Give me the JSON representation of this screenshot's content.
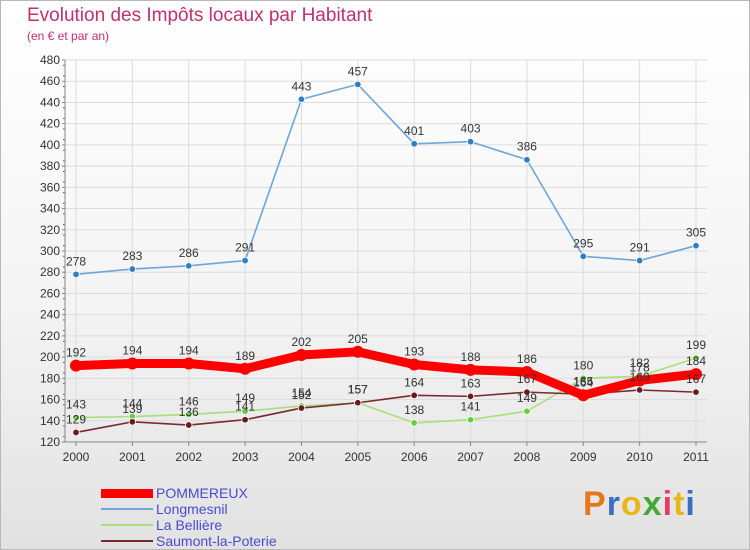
{
  "title": "Evolution des Impôts locaux par Habitant",
  "subtitle": "(en € et par an)",
  "logo": {
    "text": "Proxiti",
    "colors": [
      "#e8761a",
      "#3a6fc0",
      "#e8b81a",
      "#46a83a",
      "#e83a6a",
      "#e8b81a",
      "#3a6fc0"
    ]
  },
  "chart_data": {
    "type": "line",
    "title": "Evolution des Impôts locaux par Habitant",
    "subtitle": "(en € et par an)",
    "xlabel": "",
    "ylabel": "",
    "x": [
      "2000",
      "2001",
      "2002",
      "2003",
      "2004",
      "2005",
      "2006",
      "2007",
      "2008",
      "2009",
      "2010",
      "2011"
    ],
    "ylim": [
      120,
      480
    ],
    "yticks": [
      120,
      140,
      160,
      180,
      200,
      220,
      240,
      260,
      280,
      300,
      320,
      340,
      360,
      380,
      400,
      420,
      440,
      460,
      480
    ],
    "grid": true,
    "legend": "bottom-left",
    "series": [
      {
        "name": "Longmesnil",
        "color": "#6fa6d6",
        "marker_color": "#2f7fc7",
        "values": [
          278,
          283,
          286,
          291,
          443,
          457,
          401,
          403,
          386,
          295,
          291,
          305
        ],
        "labels": [
          "278",
          "283",
          "286",
          "291",
          "443",
          "457",
          "401",
          "403",
          "386",
          "295",
          "291",
          "305"
        ]
      },
      {
        "name": "La Bellière",
        "color": "#a8de7c",
        "marker_color": "#62d040",
        "values": [
          143,
          144,
          146,
          149,
          154,
          157,
          138,
          141,
          149,
          180,
          182,
          199
        ],
        "labels": [
          "143",
          "144",
          "146",
          "149",
          "154",
          "157",
          "138",
          "141",
          "149",
          "180",
          "182",
          "199"
        ]
      },
      {
        "name": "Saumont-la-Poterie",
        "color": "#7a2a32",
        "marker_color": "#6a1a22",
        "values": [
          129,
          139,
          136,
          141,
          152,
          157,
          164,
          163,
          167,
          165,
          169,
          167
        ],
        "labels": [
          "129",
          "139",
          "136",
          "141",
          "152",
          "157",
          "164",
          "163",
          "167",
          "165",
          "169",
          "167"
        ]
      },
      {
        "name": "POMMEREUX",
        "color": "#ff0000",
        "marker_color": "#ff0000",
        "values": [
          192,
          194,
          194,
          189,
          202,
          205,
          193,
          188,
          186,
          164,
          178,
          184
        ],
        "labels": [
          "192",
          "194",
          "194",
          "189",
          "202",
          "205",
          "193",
          "188",
          "186",
          "164",
          "178",
          "184"
        ]
      }
    ],
    "legend_entries": [
      "POMMEREUX",
      "Longmesnil",
      "La Bellière",
      "Saumont-la-Poterie"
    ]
  }
}
